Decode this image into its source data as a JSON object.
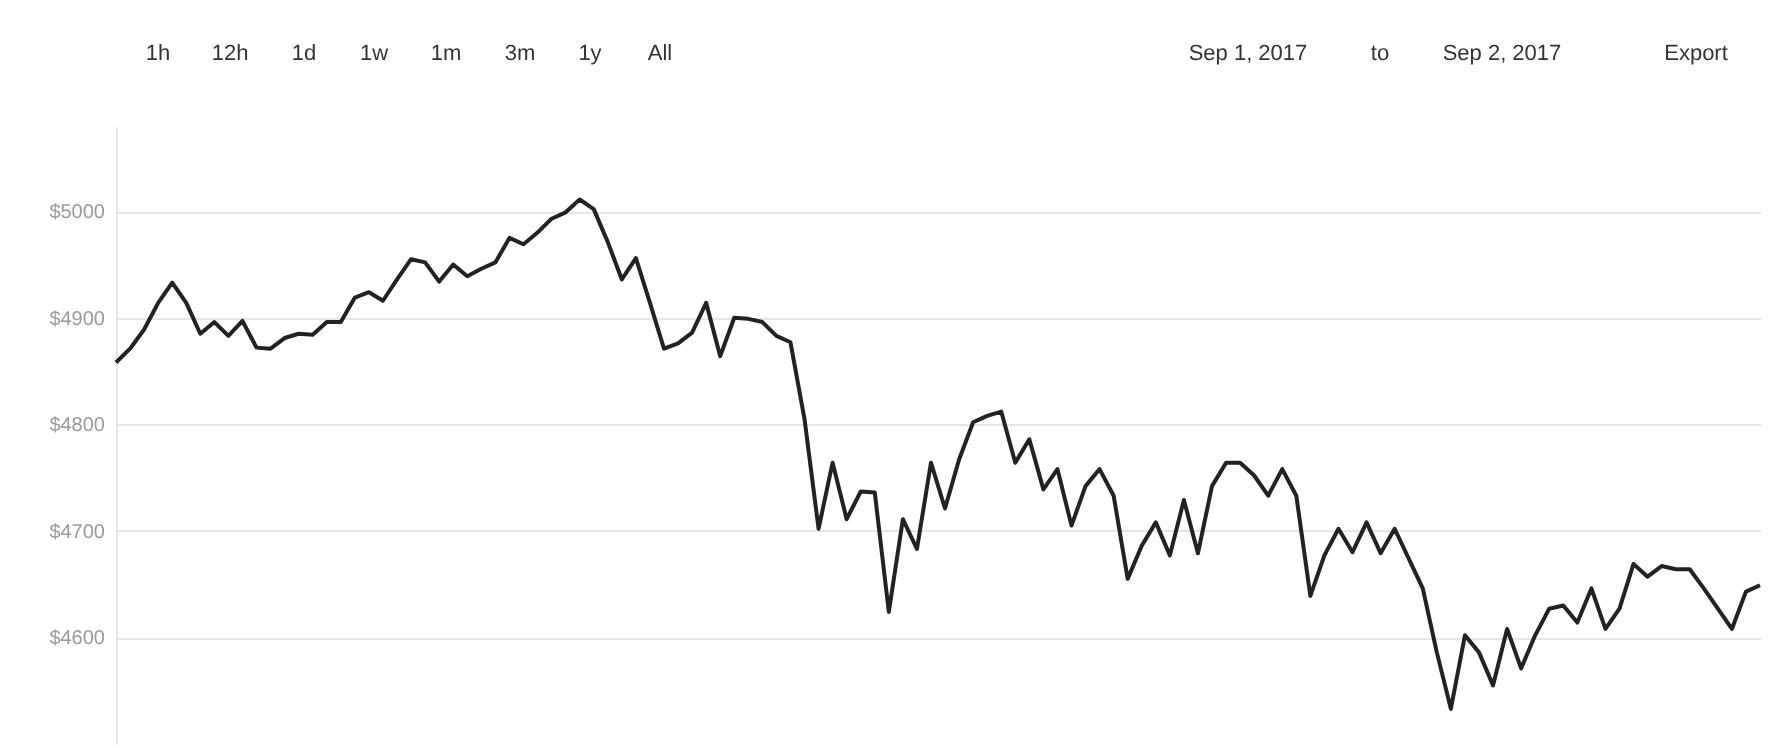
{
  "chart_data": {
    "type": "line",
    "categories": [
      null,
      null,
      null,
      null,
      null,
      null,
      null,
      null,
      null,
      null,
      null,
      null,
      null,
      null,
      null,
      null,
      null,
      null,
      null,
      null,
      null,
      null,
      null,
      null,
      null,
      null,
      null,
      null,
      null,
      null,
      null,
      null,
      null,
      null,
      null,
      null,
      null,
      null,
      null,
      null,
      null,
      null,
      null,
      null,
      null,
      null,
      null,
      null,
      null,
      null,
      null,
      null,
      null,
      null,
      null,
      null,
      null,
      null,
      null,
      null,
      null,
      null,
      null,
      null,
      null,
      null,
      null,
      null,
      null,
      null,
      null,
      null,
      null,
      null,
      null,
      null,
      null,
      null,
      null,
      null,
      null,
      null,
      null,
      null,
      null,
      null,
      null,
      null,
      null,
      null,
      null,
      null,
      null,
      null,
      null,
      null,
      null,
      null,
      null,
      null,
      null,
      null,
      null,
      null,
      null,
      null,
      null,
      null,
      null,
      null,
      null,
      null,
      null,
      null,
      null,
      null,
      null,
      null
    ],
    "series": [
      {
        "color": "#222222",
        "values": [
          4858,
          4871,
          4889,
          4914,
          4933,
          4914,
          4885,
          4896,
          4883,
          4897,
          4872,
          4871,
          4881,
          4885,
          4884,
          4896,
          4896,
          4919,
          4924,
          4916,
          4936,
          4955,
          4952,
          4934,
          4950,
          4939,
          4946,
          4952,
          4975,
          4969,
          4980,
          4993,
          4999,
          5011,
          5002,
          4971,
          4936,
          4956,
          4914,
          4871,
          4876,
          4886,
          4914,
          4864,
          4900,
          4899,
          4896,
          4883,
          4877,
          4805,
          4702,
          4764,
          4711,
          4737,
          4736,
          4624,
          4711,
          4683,
          4764,
          4721,
          4767,
          4802,
          4808,
          4812,
          4764,
          4786,
          4739,
          4758,
          4705,
          4742,
          4758,
          4733,
          4655,
          4686,
          4708,
          4677,
          4729,
          4679,
          4742,
          4764,
          4764,
          4752,
          4733,
          4758,
          4733,
          4639,
          4677,
          4702,
          4680,
          4708,
          4679,
          4702,
          4674,
          4646,
          4586,
          4533,
          4602,
          4586,
          4555,
          4608,
          4571,
          4602,
          4627,
          4630,
          4614,
          4646,
          4608,
          4627,
          4669,
          4657,
          4667,
          4664,
          4664,
          4646,
          4627,
          4608,
          4643,
          4649
        ]
      }
    ],
    "ylim": [
      4500,
      5080
    ],
    "yticks": [
      {
        "value": 4600,
        "label": "$4600"
      },
      {
        "value": 4700,
        "label": "$4700"
      },
      {
        "value": 4800,
        "label": "$4800"
      },
      {
        "value": 4900,
        "label": "$4900"
      },
      {
        "value": 5000,
        "label": "$5000"
      }
    ],
    "grid": "y",
    "marker": "none",
    "line_style": "solid",
    "annotations": [
      "1h",
      "12h",
      "1d",
      "1w",
      "1m",
      "3m",
      "1y",
      "All",
      "Sep 1, 2017",
      "to",
      "Sep 2, 2017",
      "Export"
    ]
  }
}
